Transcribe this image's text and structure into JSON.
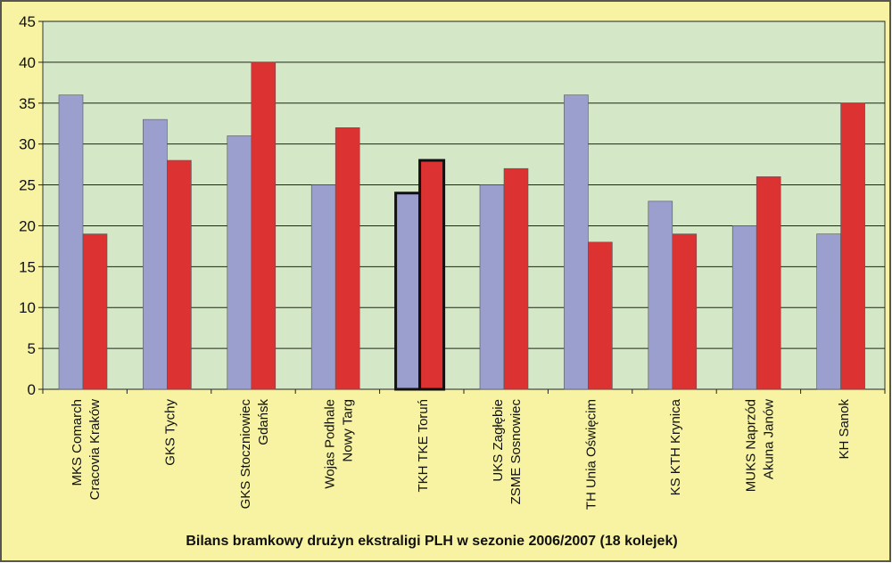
{
  "chart_data": {
    "type": "bar",
    "title": "Bilans bramkowy drużyn ekstraligi PLH w sezonie 2006/2007 (18 kolejek)",
    "xlabel": "",
    "ylabel": "",
    "ylim": [
      0,
      45
    ],
    "yticks": [
      0,
      5,
      10,
      15,
      20,
      25,
      30,
      35,
      40,
      45
    ],
    "grid": true,
    "legend": "none",
    "categories": [
      [
        "MKS Comarch",
        "Cracovia Kraków"
      ],
      [
        "GKS Tychy"
      ],
      [
        "GKS Stoczniowiec",
        "Gdańsk"
      ],
      [
        "Wojas Podhale",
        "Nowy Targ"
      ],
      [
        "TKH TKE Toruń"
      ],
      [
        "UKS Zagłębie",
        "ZSME Sosnowiec"
      ],
      [
        "TH Unia Oświęcim"
      ],
      [
        "KS KTH Krynica"
      ],
      [
        "MUKS Naprzód",
        "Akuna Janów"
      ],
      [
        "KH Sanok"
      ]
    ],
    "highlighted_category_index": 4,
    "series": [
      {
        "name": "series-1",
        "color": "#9a9fcd",
        "values": [
          36,
          33,
          31,
          25,
          24,
          25,
          36,
          23,
          20,
          19
        ]
      },
      {
        "name": "series-2",
        "color": "#dc3332",
        "values": [
          19,
          28,
          40,
          32,
          28,
          27,
          18,
          19,
          26,
          35
        ]
      }
    ],
    "colors": {
      "outer_bg": "#f7f3a2",
      "plot_bg": "#d4e8c8",
      "grid": "#222222"
    }
  }
}
